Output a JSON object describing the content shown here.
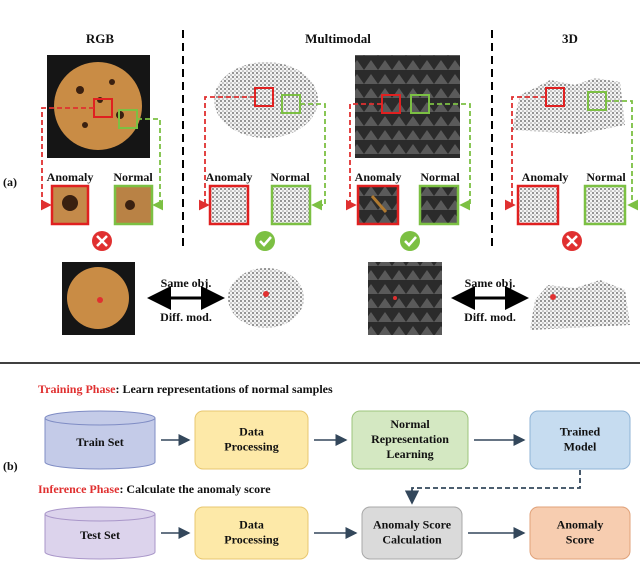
{
  "part_a": {
    "label": "(a)",
    "columns": [
      "RGB",
      "Multimodal",
      "3D"
    ],
    "panels": [
      {
        "anomaly": "Anomaly",
        "normal": "Normal"
      },
      {
        "anomaly": "Anomaly",
        "normal": "Normal"
      },
      {
        "anomaly": "Anomaly",
        "normal": "Normal"
      },
      {
        "anomaly": "Anomaly",
        "normal": "Normal"
      }
    ],
    "comparisons": [
      {
        "top": "Same obj.",
        "bottom": "Diff. mod."
      },
      {
        "top": "Same obj.",
        "bottom": "Diff. mod."
      }
    ]
  },
  "part_b": {
    "label": "(b)",
    "training": {
      "phase": "Training Phase",
      "description": ": Learn representations of normal samples",
      "nodes": [
        [
          "Train Set"
        ],
        [
          "Data",
          "Processing"
        ],
        [
          "Normal",
          "Representation",
          "Learning"
        ],
        [
          "Trained",
          "Model"
        ]
      ]
    },
    "inference": {
      "phase": "Inference Phase",
      "description": ": Calculate the anomaly score",
      "nodes": [
        [
          "Test Set"
        ],
        [
          "Data",
          "Processing"
        ],
        [
          "Anomaly Score",
          "Calculation"
        ],
        [
          "Anomaly",
          "Score"
        ]
      ]
    }
  }
}
